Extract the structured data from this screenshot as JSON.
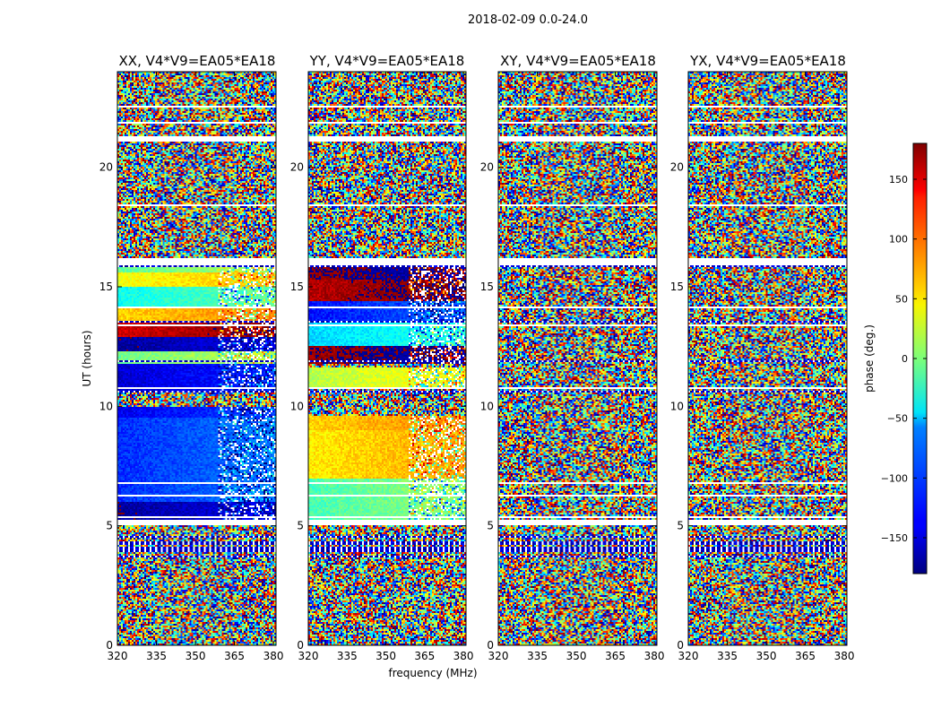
{
  "figure": {
    "suptitle": "2018-02-09 0.0-24.0"
  },
  "chart_data": {
    "type": "heatmap",
    "xlabel": "frequency (MHz)",
    "ylabel": "UT (hours)",
    "xlim": [
      320,
      381
    ],
    "ylim": [
      0,
      24
    ],
    "xticks": [
      "320",
      "335",
      "350",
      "365",
      "380"
    ],
    "yticks": [
      "0",
      "5",
      "10",
      "15",
      "20"
    ],
    "panels": [
      {
        "title": "XX, V4*V9=EA05*EA18",
        "pol": "XX"
      },
      {
        "title": "YY, V4*V9=EA05*EA18",
        "pol": "YY"
      },
      {
        "title": "XY, V4*V9=EA05*EA18",
        "pol": "XY"
      },
      {
        "title": "YX, V4*V9=EA05*EA18",
        "pol": "YX"
      }
    ],
    "colorbar": {
      "label": "phase (deg.)",
      "range": [
        -180,
        180
      ],
      "ticks": [
        "150",
        "100",
        "50",
        "0",
        "−50",
        "−100",
        "−150"
      ],
      "tick_values": [
        150,
        100,
        50,
        0,
        -50,
        -100,
        -150
      ],
      "colormap": "jet"
    },
    "noise_bands_hours": [
      [
        0,
        5
      ],
      [
        16.2,
        24
      ]
    ],
    "flagged_white_hours": [
      [
        5.0,
        5.15
      ],
      [
        15.9,
        16.2
      ]
    ],
    "coherent_segments": {
      "XX": [
        {
          "from": 5.2,
          "to": 6.0,
          "phase": -170
        },
        {
          "from": 6.0,
          "to": 9.5,
          "phase": -120
        },
        {
          "from": 9.5,
          "to": 10.0,
          "phase": -140
        },
        {
          "from": 10.6,
          "to": 11.8,
          "phase": -150
        },
        {
          "from": 11.8,
          "to": 12.3,
          "phase": -5
        },
        {
          "from": 12.3,
          "to": 12.9,
          "phase": -170
        },
        {
          "from": 12.9,
          "to": 13.5,
          "phase": 150
        },
        {
          "from": 13.5,
          "to": 14.2,
          "phase": 60
        },
        {
          "from": 14.2,
          "to": 15.0,
          "phase": -40
        },
        {
          "from": 15.0,
          "to": 15.6,
          "phase": 40
        },
        {
          "from": 15.6,
          "to": 15.9,
          "phase": -10
        }
      ],
      "YY": [
        {
          "from": 5.2,
          "to": 7.0,
          "phase": -20
        },
        {
          "from": 7.0,
          "to": 9.0,
          "phase": 50
        },
        {
          "from": 9.0,
          "to": 9.6,
          "phase": 60
        },
        {
          "from": 10.8,
          "to": 11.6,
          "phase": 20
        },
        {
          "from": 11.8,
          "to": 12.5,
          "phase": 170
        },
        {
          "from": 12.5,
          "to": 13.6,
          "phase": -60
        },
        {
          "from": 13.6,
          "to": 14.4,
          "phase": -130
        },
        {
          "from": 14.4,
          "to": 15.3,
          "phase": 160
        },
        {
          "from": 15.3,
          "to": 15.9,
          "phase": 175
        }
      ]
    }
  }
}
